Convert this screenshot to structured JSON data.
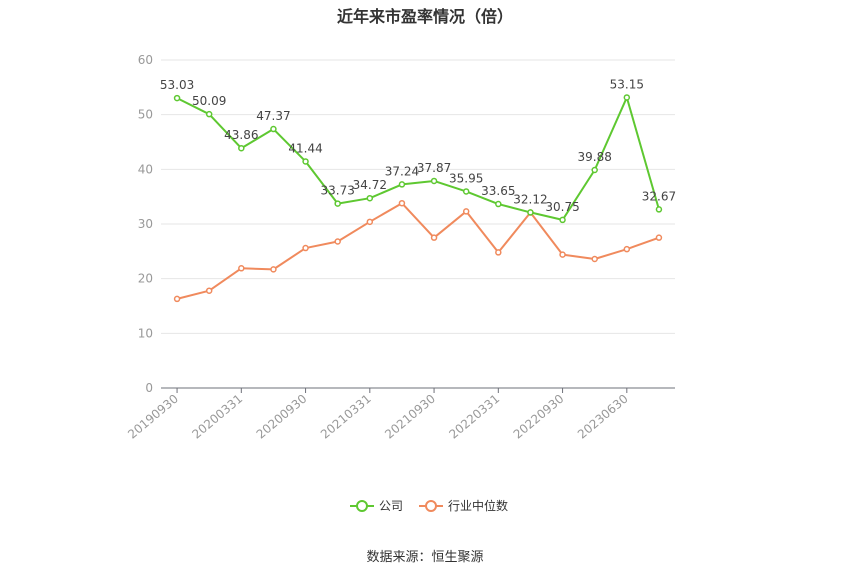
{
  "chart_data": {
    "type": "line",
    "title": "近年来市盈率情况（倍）",
    "source": "数据来源：恒生聚源",
    "ylim": [
      0,
      60
    ],
    "yticks": [
      0,
      10,
      20,
      30,
      40,
      50,
      60
    ],
    "x_tick_labels": [
      "20190930",
      "20200331",
      "20200930",
      "20210331",
      "20210930",
      "20220331",
      "20220930",
      "20230630"
    ],
    "x_tick_indices": [
      0,
      2,
      4,
      6,
      8,
      10,
      12,
      14
    ],
    "grid": true,
    "legend_position": "bottom",
    "series": [
      {
        "name": "公司",
        "color": "#5ec831",
        "show_labels": true,
        "values": [
          53.03,
          50.09,
          43.86,
          47.37,
          41.44,
          33.73,
          34.72,
          37.24,
          37.87,
          35.95,
          33.65,
          32.12,
          30.75,
          39.88,
          53.15,
          32.67
        ]
      },
      {
        "name": "行业中位数",
        "color": "#f08a5d",
        "show_labels": false,
        "values": [
          16.3,
          17.8,
          21.9,
          21.7,
          25.6,
          26.8,
          30.4,
          33.8,
          27.5,
          32.3,
          24.8,
          32.1,
          24.4,
          23.6,
          25.4,
          27.5
        ]
      }
    ]
  }
}
